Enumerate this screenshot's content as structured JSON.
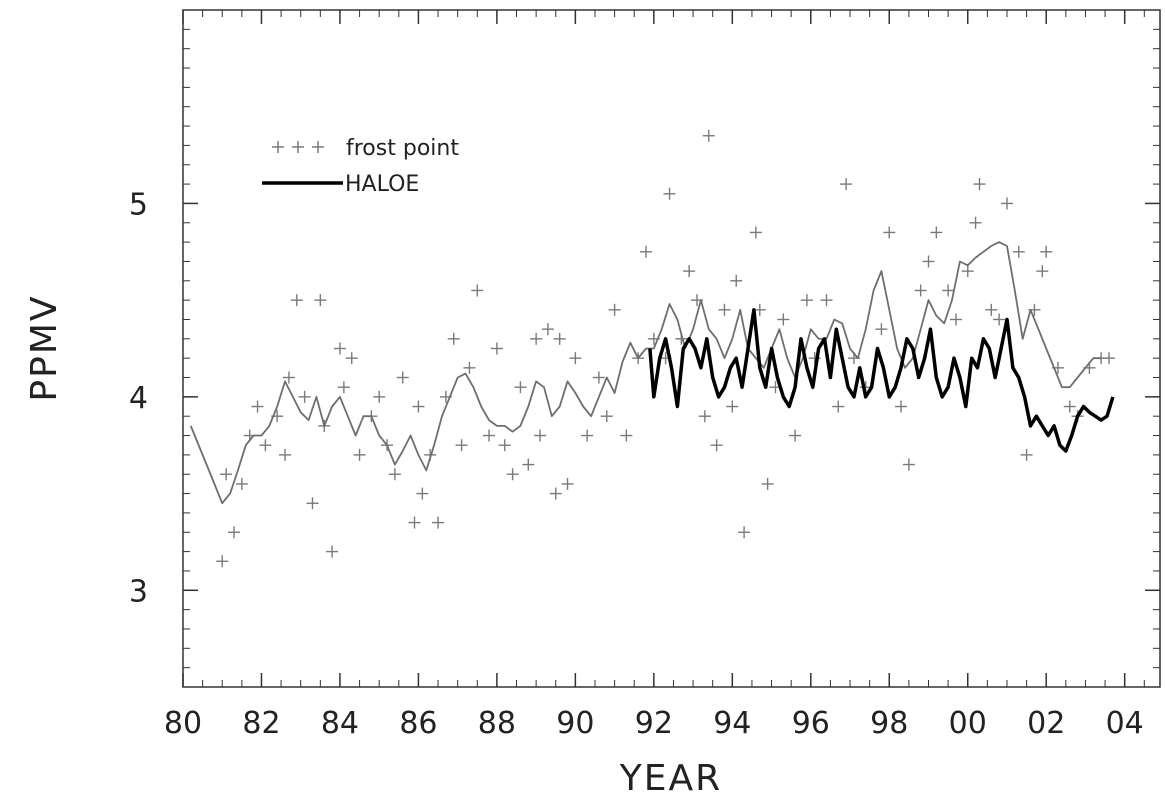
{
  "chart_data": {
    "type": "line",
    "title": "",
    "xlabel": "YEAR",
    "ylabel": "PPMV",
    "xlim": [
      1980,
      2004.9
    ],
    "ylim": [
      2.5,
      6.0
    ],
    "x_ticks": [
      1980,
      1982,
      1984,
      1986,
      1988,
      1990,
      1992,
      1994,
      1996,
      1998,
      2000,
      2002,
      2004
    ],
    "x_tick_labels": [
      "80",
      "82",
      "84",
      "86",
      "88",
      "90",
      "92",
      "94",
      "96",
      "98",
      "00",
      "02",
      "04"
    ],
    "y_ticks": [
      3,
      4,
      5
    ],
    "y_tick_labels": [
      "3",
      "4",
      "5"
    ],
    "grid": false,
    "legend_position": "upper-left",
    "legend": [
      {
        "label": "frost point",
        "marker": "+"
      },
      {
        "label": "HALOE",
        "style": "thick-line"
      }
    ],
    "colors": {
      "frost_point": "#7a7a7a",
      "smoothed": "#6e6e6e",
      "haloe": "#000000"
    },
    "series": [
      {
        "name": "frost point",
        "type": "scatter",
        "x": [
          1981.0,
          1981.1,
          1981.3,
          1981.5,
          1981.7,
          1981.9,
          1982.1,
          1982.4,
          1982.6,
          1982.7,
          1982.9,
          1983.1,
          1983.3,
          1983.5,
          1983.6,
          1983.8,
          1984.0,
          1984.1,
          1984.3,
          1984.5,
          1984.8,
          1985.0,
          1985.2,
          1985.4,
          1985.6,
          1985.9,
          1986.0,
          1986.1,
          1986.3,
          1986.5,
          1986.7,
          1986.9,
          1987.1,
          1987.3,
          1987.5,
          1987.8,
          1988.0,
          1988.2,
          1988.4,
          1988.6,
          1988.8,
          1989.0,
          1989.1,
          1989.3,
          1989.5,
          1989.6,
          1989.8,
          1990.0,
          1990.3,
          1990.6,
          1990.8,
          1991.0,
          1991.3,
          1991.6,
          1991.8,
          1992.0,
          1992.3,
          1992.4,
          1992.7,
          1992.9,
          1993.1,
          1993.3,
          1993.4,
          1993.6,
          1993.8,
          1994.0,
          1994.1,
          1994.3,
          1994.6,
          1994.7,
          1994.9,
          1995.1,
          1995.3,
          1995.6,
          1995.9,
          1996.1,
          1996.4,
          1996.7,
          1996.9,
          1997.1,
          1997.4,
          1997.8,
          1998.0,
          1998.3,
          1998.5,
          1998.8,
          1999.0,
          1999.2,
          1999.5,
          1999.7,
          2000.0,
          2000.2,
          2000.3,
          2000.6,
          2000.8,
          2001.0,
          2001.3,
          2001.5,
          2001.7,
          2001.9,
          2002.0,
          2002.3,
          2002.6,
          2002.8,
          2003.1,
          2003.4,
          2003.6
        ],
        "values": [
          3.15,
          3.6,
          3.3,
          3.55,
          3.8,
          3.95,
          3.75,
          3.9,
          3.7,
          4.1,
          4.5,
          4.0,
          3.45,
          4.5,
          3.85,
          3.2,
          4.25,
          4.05,
          4.2,
          3.7,
          3.9,
          4.0,
          3.75,
          3.6,
          4.1,
          3.35,
          3.95,
          3.5,
          3.7,
          3.35,
          4.0,
          4.3,
          3.75,
          4.15,
          4.55,
          3.8,
          4.25,
          3.75,
          3.6,
          4.05,
          3.65,
          4.3,
          3.8,
          4.35,
          3.5,
          4.3,
          3.55,
          4.2,
          3.8,
          4.1,
          3.9,
          4.45,
          3.8,
          4.2,
          4.75,
          4.3,
          4.2,
          5.05,
          4.3,
          4.65,
          4.5,
          3.9,
          5.35,
          3.75,
          4.45,
          3.95,
          4.6,
          3.3,
          4.85,
          4.45,
          3.55,
          4.05,
          4.4,
          3.8,
          4.5,
          4.2,
          4.5,
          3.95,
          5.1,
          4.2,
          4.05,
          4.35,
          4.85,
          3.95,
          3.65,
          4.55,
          4.7,
          4.85,
          4.55,
          4.4,
          4.65,
          4.9,
          5.1,
          4.45,
          4.4,
          5.0,
          4.75,
          3.7,
          4.45,
          4.65,
          4.75,
          4.15,
          3.95,
          3.9,
          4.15,
          4.2,
          4.2
        ]
      },
      {
        "name": "",
        "type": "line",
        "x": [
          1980.2,
          1980.5,
          1980.8,
          1981.0,
          1981.2,
          1981.4,
          1981.6,
          1981.8,
          1982.0,
          1982.2,
          1982.4,
          1982.6,
          1982.8,
          1983.0,
          1983.2,
          1983.4,
          1983.6,
          1983.8,
          1984.0,
          1984.2,
          1984.4,
          1984.6,
          1984.8,
          1985.0,
          1985.2,
          1985.4,
          1985.6,
          1985.8,
          1986.0,
          1986.2,
          1986.4,
          1986.6,
          1986.8,
          1987.0,
          1987.2,
          1987.4,
          1987.6,
          1987.8,
          1988.0,
          1988.2,
          1988.4,
          1988.6,
          1988.8,
          1989.0,
          1989.2,
          1989.4,
          1989.6,
          1989.8,
          1990.0,
          1990.2,
          1990.4,
          1990.6,
          1990.8,
          1991.0,
          1991.2,
          1991.4,
          1991.6,
          1991.8,
          1992.0,
          1992.2,
          1992.4,
          1992.6,
          1992.8,
          1993.0,
          1993.2,
          1993.4,
          1993.6,
          1993.8,
          1994.0,
          1994.2,
          1994.4,
          1994.6,
          1994.8,
          1995.0,
          1995.2,
          1995.4,
          1995.6,
          1995.8,
          1996.0,
          1996.2,
          1996.4,
          1996.6,
          1996.8,
          1997.0,
          1997.2,
          1997.4,
          1997.6,
          1997.8,
          1998.0,
          1998.2,
          1998.4,
          1998.6,
          1998.8,
          1999.0,
          1999.2,
          1999.4,
          1999.6,
          1999.8,
          2000.0,
          2000.2,
          2000.4,
          2000.6,
          2000.8,
          2001.0,
          2001.2,
          2001.4,
          2001.6,
          2001.8,
          2002.0,
          2002.2,
          2002.4,
          2002.6,
          2002.8,
          2003.0,
          2003.2,
          2003.4
        ],
        "values": [
          3.85,
          3.7,
          3.55,
          3.45,
          3.5,
          3.62,
          3.75,
          3.8,
          3.8,
          3.85,
          3.95,
          4.08,
          4.0,
          3.92,
          3.88,
          4.0,
          3.85,
          3.95,
          4.0,
          3.9,
          3.8,
          3.9,
          3.9,
          3.8,
          3.75,
          3.65,
          3.72,
          3.8,
          3.7,
          3.62,
          3.75,
          3.9,
          4.0,
          4.1,
          4.12,
          4.05,
          3.95,
          3.88,
          3.85,
          3.85,
          3.82,
          3.85,
          3.95,
          4.08,
          4.05,
          3.9,
          3.95,
          4.08,
          4.02,
          3.95,
          3.9,
          4.0,
          4.1,
          4.02,
          4.18,
          4.28,
          4.2,
          4.25,
          4.25,
          4.35,
          4.48,
          4.4,
          4.25,
          4.35,
          4.5,
          4.35,
          4.3,
          4.2,
          4.3,
          4.45,
          4.25,
          4.2,
          4.15,
          4.25,
          4.35,
          4.2,
          4.1,
          4.2,
          4.35,
          4.3,
          4.3,
          4.4,
          4.38,
          4.25,
          4.2,
          4.35,
          4.55,
          4.65,
          4.45,
          4.25,
          4.15,
          4.2,
          4.35,
          4.5,
          4.42,
          4.38,
          4.5,
          4.7,
          4.68,
          4.72,
          4.75,
          4.78,
          4.8,
          4.78,
          4.55,
          4.3,
          4.45,
          4.35,
          4.25,
          4.15,
          4.05,
          4.05,
          4.1,
          4.15,
          4.2,
          4.2
        ]
      },
      {
        "name": "HALOE",
        "type": "line",
        "x": [
          1991.9,
          1992.0,
          1992.15,
          1992.3,
          1992.45,
          1992.6,
          1992.75,
          1992.9,
          1993.05,
          1993.2,
          1993.35,
          1993.5,
          1993.65,
          1993.8,
          1993.95,
          1994.1,
          1994.25,
          1994.4,
          1994.55,
          1994.7,
          1994.85,
          1995.0,
          1995.15,
          1995.3,
          1995.45,
          1995.6,
          1995.75,
          1995.9,
          1996.05,
          1996.2,
          1996.35,
          1996.5,
          1996.65,
          1996.8,
          1996.95,
          1997.1,
          1997.25,
          1997.4,
          1997.55,
          1997.7,
          1997.85,
          1998.0,
          1998.15,
          1998.3,
          1998.45,
          1998.6,
          1998.75,
          1998.9,
          1999.05,
          1999.2,
          1999.35,
          1999.5,
          1999.65,
          1999.8,
          1999.95,
          2000.1,
          2000.25,
          2000.4,
          2000.55,
          2000.7,
          2000.85,
          2001.0,
          2001.15,
          2001.3,
          2001.45,
          2001.6,
          2001.75,
          2001.9,
          2002.05,
          2002.2,
          2002.35,
          2002.5,
          2002.65,
          2002.8,
          2002.95,
          2003.1,
          2003.25,
          2003.4,
          2003.55,
          2003.7
        ],
        "values": [
          4.25,
          4.0,
          4.2,
          4.3,
          4.15,
          3.95,
          4.25,
          4.3,
          4.25,
          4.15,
          4.3,
          4.1,
          4.0,
          4.05,
          4.15,
          4.2,
          4.05,
          4.25,
          4.45,
          4.15,
          4.05,
          4.25,
          4.1,
          4.0,
          3.95,
          4.05,
          4.3,
          4.15,
          4.05,
          4.25,
          4.3,
          4.1,
          4.35,
          4.2,
          4.05,
          4.0,
          4.15,
          4.0,
          4.05,
          4.25,
          4.15,
          4.0,
          4.05,
          4.15,
          4.3,
          4.25,
          4.1,
          4.2,
          4.35,
          4.1,
          4.0,
          4.05,
          4.2,
          4.1,
          3.95,
          4.2,
          4.15,
          4.3,
          4.25,
          4.1,
          4.25,
          4.4,
          4.15,
          4.1,
          4.0,
          3.85,
          3.9,
          3.85,
          3.8,
          3.85,
          3.75,
          3.72,
          3.8,
          3.9,
          3.95,
          3.92,
          3.9,
          3.88,
          3.9,
          4.0
        ]
      }
    ]
  }
}
